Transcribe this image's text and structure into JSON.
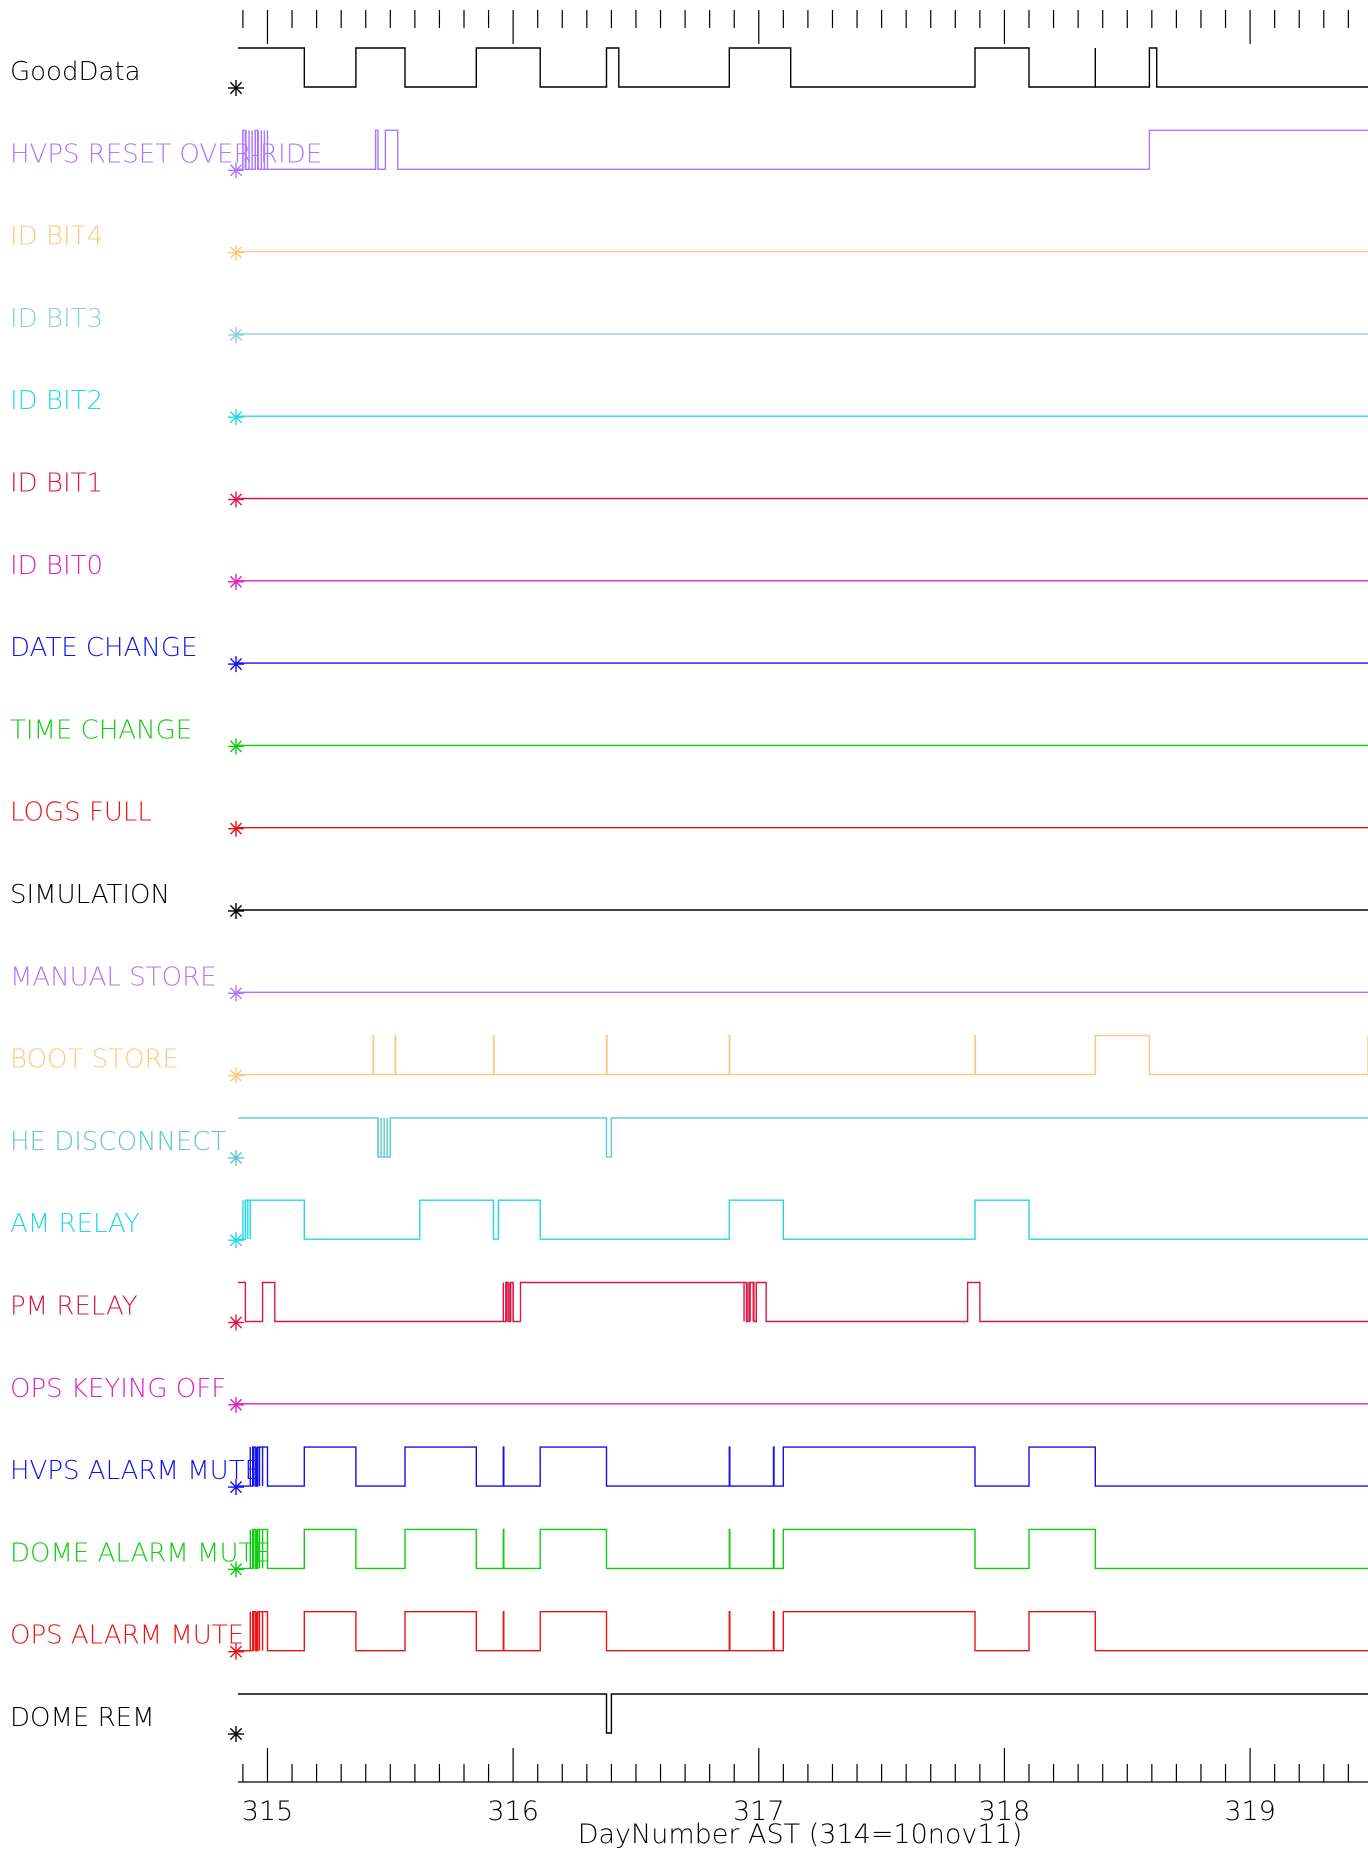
{
  "chart_data": {
    "type": "line",
    "subtype": "digital-timing",
    "xlabel": "DayNumber AST (314=10nov11)",
    "xlim": [
      314.88,
      319.48
    ],
    "x_ticks": [
      315,
      316,
      317,
      318,
      319
    ],
    "x_tick_labels": [
      "315",
      "316",
      "317",
      "318",
      "319"
    ],
    "series": [
      {
        "name": "GoodData",
        "color": "#000000",
        "init": 1,
        "t": [
          315.15,
          315.36,
          315.56,
          315.85,
          316.11,
          316.38,
          316.43,
          316.88,
          317.13,
          317.88,
          318.1,
          318.37,
          318.37,
          318.59,
          318.62
        ],
        "conts": []
      },
      {
        "name": "HVPS RESET OVER-RIDE",
        "color": "#aa77ff",
        "init": 0,
        "t": [
          314.9,
          314.91,
          314.95,
          314.96,
          315.44,
          315.45,
          315.48,
          315.53,
          318.59
        ],
        "conts": [
          [
            314.9,
            315.0
          ]
        ]
      },
      {
        "name": "ID BIT4",
        "color": "#ffc880",
        "init": 0,
        "t": [],
        "conts": []
      },
      {
        "name": "ID BIT3",
        "color": "#8ad0dc",
        "init": 0,
        "t": [],
        "conts": []
      },
      {
        "name": "ID BIT2",
        "color": "#22d8e8",
        "init": 0,
        "t": [],
        "conts": []
      },
      {
        "name": "ID BIT1",
        "color": "#dd1744",
        "init": 0,
        "t": [],
        "conts": []
      },
      {
        "name": "ID BIT0",
        "color": "#dd22bb",
        "init": 0,
        "t": [],
        "conts": []
      },
      {
        "name": "DATE CHANGE",
        "color": "#1111ee",
        "init": 0,
        "t": [],
        "conts": []
      },
      {
        "name": "TIME CHANGE",
        "color": "#11cc11",
        "init": 0,
        "t": [],
        "conts": []
      },
      {
        "name": "LOGS FULL",
        "color": "#ee1111",
        "init": 0,
        "t": [],
        "conts": []
      },
      {
        "name": "SIMULATION",
        "color": "#000000",
        "init": 0,
        "t": [],
        "conts": []
      },
      {
        "name": "MANUAL STORE",
        "color": "#aa77ff",
        "init": 0,
        "t": [],
        "conts": []
      },
      {
        "name": "BOOT STORE",
        "color": "#ffc880",
        "init": 0,
        "t": [
          315.43,
          315.432,
          315.52,
          315.522,
          315.92,
          315.922,
          316.38,
          316.382,
          316.88,
          316.882,
          317.88,
          317.882,
          318.37,
          318.59,
          319.48
        ],
        "conts": []
      },
      {
        "name": "HE DISCONNECT",
        "color": "#5fc8c8",
        "init": 1,
        "t": [
          315.45,
          315.5,
          316.38,
          316.4
        ],
        "conts": [
          [
            315.45,
            315.5
          ]
        ]
      },
      {
        "name": "AM RELAY",
        "color": "#22d8e8",
        "init": 0,
        "t": [
          314.91,
          315.15,
          315.62,
          315.92,
          315.94,
          316.11,
          316.88,
          317.1,
          317.88,
          318.1
        ],
        "conts": [
          [
            314.9,
            314.93
          ]
        ]
      },
      {
        "name": "PM RELAY",
        "color": "#dd1744",
        "init": 1,
        "t": [
          314.91,
          314.98,
          315.03,
          315.97,
          315.98,
          315.99,
          316.0,
          316.03,
          316.95,
          316.96,
          316.98,
          316.99,
          317.03,
          317.85,
          317.9
        ],
        "conts": [
          [
            315.96,
            316.0
          ],
          [
            316.94,
            316.99
          ]
        ]
      },
      {
        "name": "OPS KEYING OFF",
        "color": "#dd22bb",
        "init": 0,
        "t": [],
        "conts": []
      },
      {
        "name": "HVPS ALARM MUTE",
        "color": "#1111ee",
        "init": 0,
        "t": [
          314.94,
          314.95,
          314.96,
          315.0,
          315.15,
          315.36,
          315.56,
          315.85,
          315.96,
          315.962,
          316.11,
          316.38,
          316.88,
          316.882,
          317.06,
          317.062,
          317.1,
          317.88,
          318.1,
          318.37
        ],
        "conts": [
          [
            314.93,
            314.98
          ]
        ]
      },
      {
        "name": "DOME ALARM MUTE",
        "color": "#11cc11",
        "init": 0,
        "t": [
          314.94,
          314.95,
          314.96,
          315.0,
          315.15,
          315.36,
          315.56,
          315.85,
          315.96,
          315.962,
          316.11,
          316.38,
          316.88,
          316.882,
          317.06,
          317.062,
          317.1,
          317.88,
          318.1,
          318.37
        ],
        "conts": [
          [
            314.93,
            314.98
          ]
        ]
      },
      {
        "name": "OPS ALARM MUTE",
        "color": "#ee1111",
        "init": 0,
        "t": [
          314.94,
          314.95,
          314.96,
          315.0,
          315.15,
          315.36,
          315.56,
          315.85,
          315.96,
          315.962,
          316.11,
          316.38,
          316.88,
          316.882,
          317.06,
          317.062,
          317.1,
          317.88,
          318.1,
          318.37
        ],
        "conts": [
          [
            314.93,
            314.98
          ]
        ]
      },
      {
        "name": "DOME REM",
        "color": "#000000",
        "init": 1,
        "t": [
          316.38,
          316.4
        ],
        "conts": []
      }
    ]
  }
}
